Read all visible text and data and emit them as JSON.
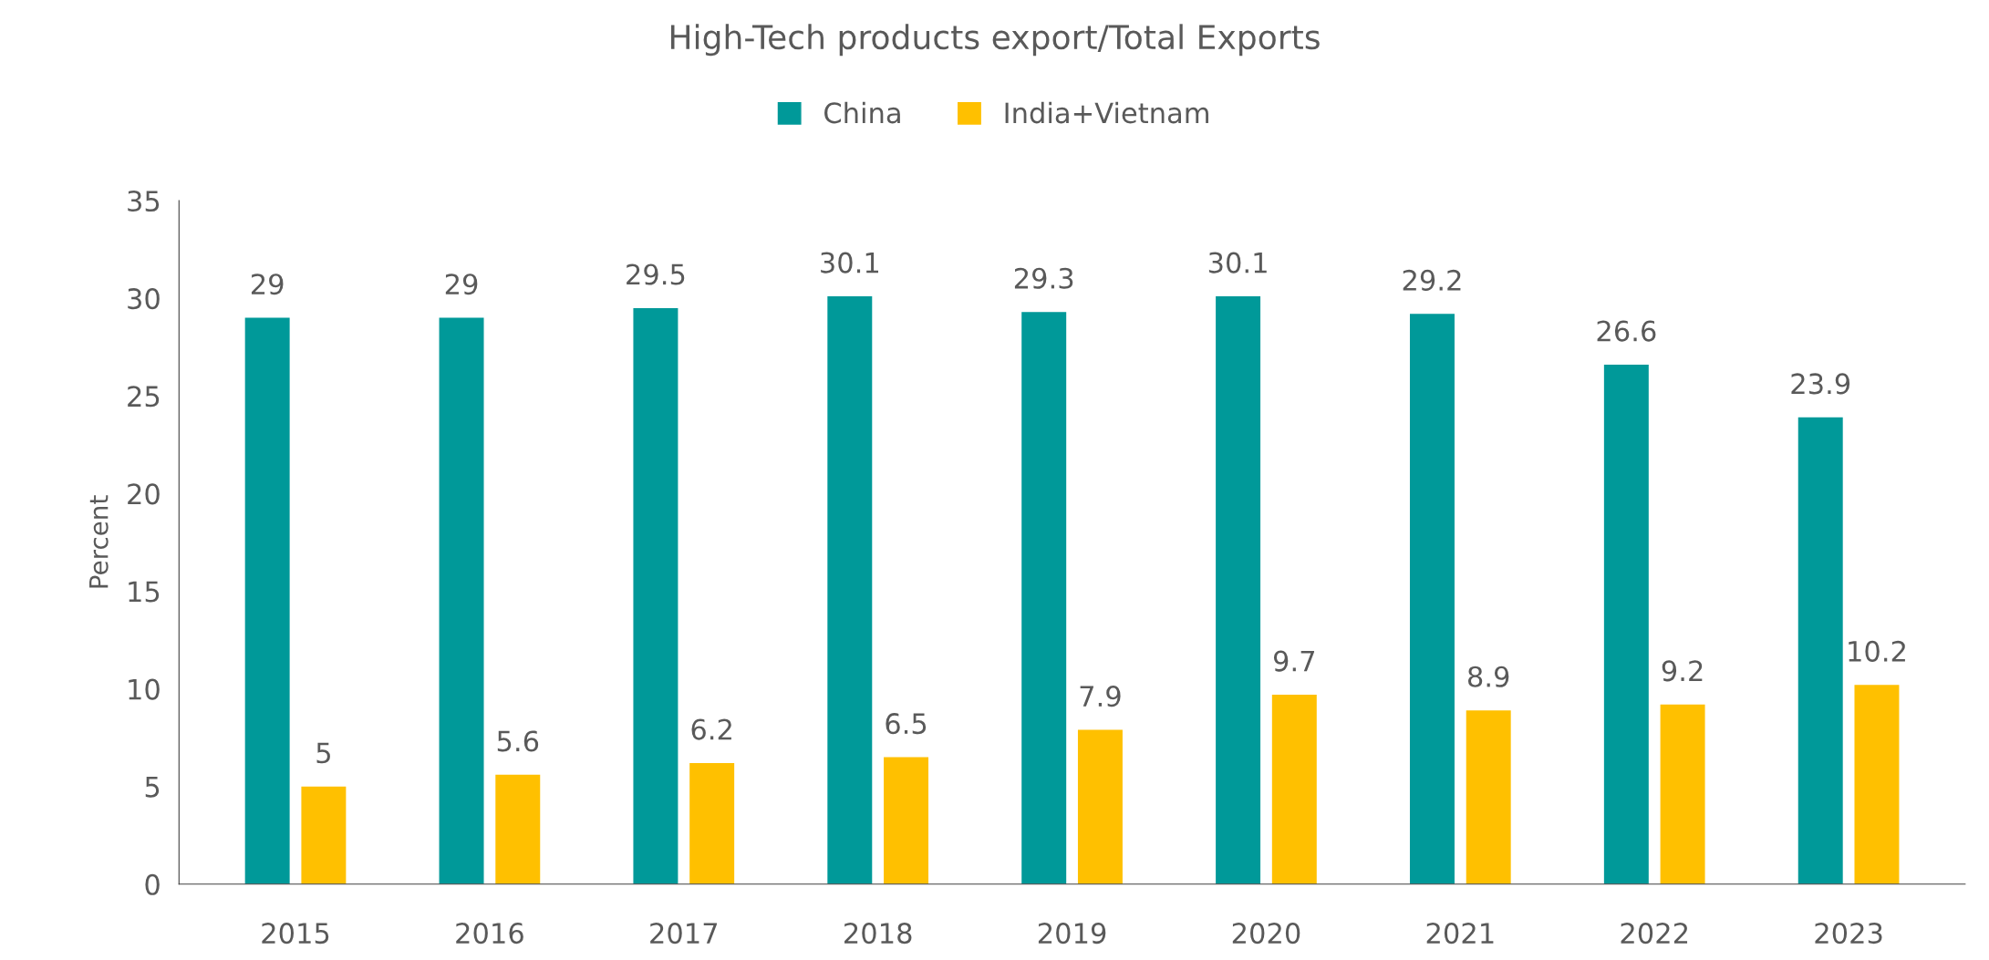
{
  "chart_data": {
    "type": "bar",
    "title": "High-Tech products export/Total Exports",
    "ylabel": "Percent",
    "categories": [
      "2015",
      "2016",
      "2017",
      "2018",
      "2019",
      "2020",
      "2021",
      "2022",
      "2023"
    ],
    "series": [
      {
        "name": "China",
        "color": "#009999",
        "values": [
          29,
          29,
          29.5,
          30.1,
          29.3,
          30.1,
          29.2,
          26.6,
          23.9
        ]
      },
      {
        "name": "India+Vietnam",
        "color": "#ffc000",
        "values": [
          5,
          5.6,
          6.2,
          6.5,
          7.9,
          9.7,
          8.9,
          9.2,
          10.2
        ]
      }
    ],
    "ylim": [
      0,
      35
    ],
    "yticks": [
      0,
      5,
      10,
      15,
      20,
      25,
      30,
      35
    ],
    "grid": false,
    "legend": "top",
    "data_labels": true
  }
}
